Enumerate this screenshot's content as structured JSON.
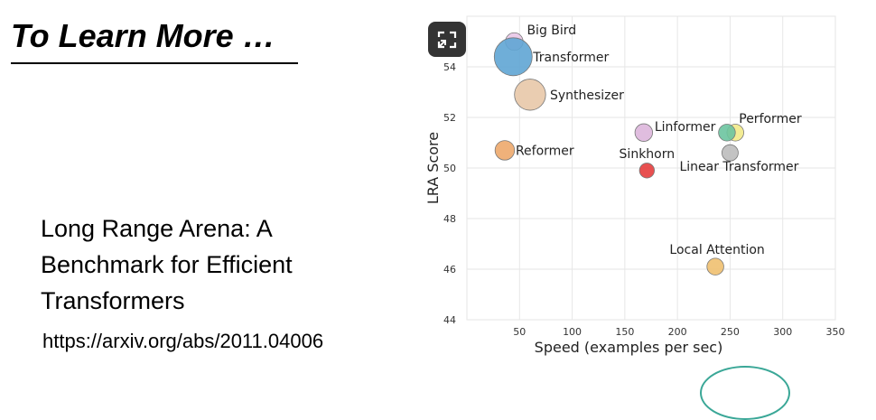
{
  "slide": {
    "title": "To Learn More …",
    "paper_title_lines": [
      "Long Range Arena: A",
      "Benchmark for Efficient",
      "Transformers"
    ],
    "paper_url": "https://arxiv.org/abs/2011.04006"
  },
  "controls": {
    "fullscreen_icon": "exit-fullscreen-icon"
  },
  "chart_data": {
    "type": "scatter",
    "xlabel": "Speed (examples per sec)",
    "ylabel": "LRA Score",
    "xlim": [
      0,
      350
    ],
    "ylim": [
      44,
      56
    ],
    "xticks": [
      50,
      100,
      150,
      200,
      250,
      300,
      350
    ],
    "yticks": [
      44,
      46,
      48,
      50,
      52,
      54
    ],
    "grid": true,
    "points": [
      {
        "label": "Big Bird",
        "x": 45,
        "y": 55.0,
        "size": 0.25,
        "color": "#e9c7e7"
      },
      {
        "label": "Transformer",
        "x": 44,
        "y": 54.4,
        "size": 1.0,
        "color": "#5fa5d4"
      },
      {
        "label": "Synthesizer",
        "x": 60,
        "y": 52.9,
        "size": 0.75,
        "color": "#e8c8a8"
      },
      {
        "label": "Reformer",
        "x": 36,
        "y": 50.7,
        "size": 0.32,
        "color": "#eda96c"
      },
      {
        "label": "Linformer",
        "x": 168,
        "y": 51.4,
        "size": 0.25,
        "color": "#ddb6dc"
      },
      {
        "label": "Performer",
        "x": 255,
        "y": 51.4,
        "size": 0.22,
        "color": "#f2ea8a"
      },
      {
        "label": "",
        "x": 247,
        "y": 51.4,
        "size": 0.22,
        "color": "#6cc4a0"
      },
      {
        "label": "Sinkhorn",
        "x": 171,
        "y": 49.9,
        "size": 0.15,
        "color": "#e53d3d"
      },
      {
        "label": "Linear Transformer",
        "x": 250,
        "y": 50.6,
        "size": 0.2,
        "color": "#bdbdbd"
      },
      {
        "label": "Local Attention",
        "x": 236,
        "y": 46.1,
        "size": 0.22,
        "color": "#f0c070"
      }
    ]
  }
}
